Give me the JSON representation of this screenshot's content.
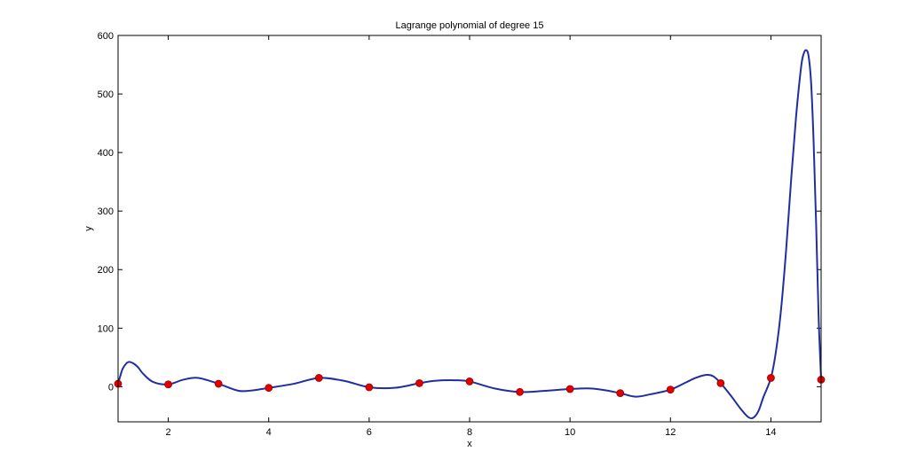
{
  "chart_data": {
    "type": "line",
    "title": "Lagrange polynomial of degree 15",
    "xlabel": "x",
    "ylabel": "y",
    "xlim": [
      1,
      15
    ],
    "ylim": [
      -60,
      600
    ],
    "xticks": [
      2,
      4,
      6,
      8,
      10,
      12,
      14
    ],
    "yticks": [
      0,
      100,
      200,
      300,
      400,
      500,
      600
    ],
    "grid": false,
    "legend": "none",
    "colors": {
      "curve": "#1f2fa0",
      "points": "#e00000",
      "axes": "#000000"
    },
    "series": [
      {
        "type": "line",
        "x": [
          1,
          1.05,
          1.1,
          1.2,
          1.3,
          1.4,
          1.5,
          1.7,
          2,
          2.3,
          2.6,
          3,
          3.4,
          3.7,
          4,
          4.5,
          5,
          5.5,
          6,
          6.5,
          7,
          7.3,
          7.7,
          8,
          8.5,
          9,
          9.5,
          10,
          10.4,
          10.7,
          11,
          11.3,
          11.6,
          12,
          12.3,
          12.5,
          12.7,
          12.85,
          13,
          13.2,
          13.4,
          13.55,
          13.65,
          13.75,
          13.85,
          14,
          14.1,
          14.2,
          14.3,
          14.4,
          14.5,
          14.6,
          14.65,
          14.7,
          14.75,
          14.8,
          14.85,
          14.9,
          14.95,
          15
        ],
        "y": [
          5,
          20,
          32,
          42,
          40,
          33,
          22,
          8,
          4,
          12,
          15,
          5,
          -7,
          -6,
          -2,
          5,
          15,
          10,
          -1,
          -2,
          6,
          10,
          11,
          9,
          -3,
          -9,
          -7,
          -4,
          -3,
          -6,
          -11,
          -17,
          -13,
          -5,
          7,
          15,
          20,
          18,
          6,
          -15,
          -38,
          -52,
          -53,
          -42,
          -18,
          15,
          60,
          130,
          230,
          350,
          460,
          545,
          568,
          575,
          565,
          520,
          420,
          280,
          120,
          12
        ]
      },
      {
        "type": "scatter",
        "x": [
          1,
          2,
          3,
          4,
          5,
          6,
          7,
          8,
          9,
          10,
          11,
          12,
          13,
          14,
          15
        ],
        "y": [
          5,
          4,
          5,
          -2,
          15,
          -1,
          6,
          9,
          -9,
          -4,
          -11,
          -5,
          6,
          15,
          12
        ]
      }
    ]
  }
}
